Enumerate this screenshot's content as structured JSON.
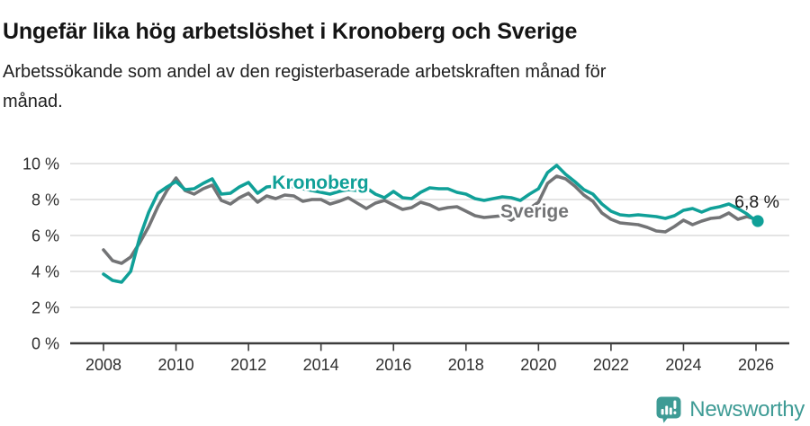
{
  "header": {
    "title": "Ungefär lika hög arbetslöshet i Kronoberg och Sverige",
    "subtitle_line1": "Arbetssökande som andel av den registerbaserade arbetskraften månad för",
    "subtitle_line2": "månad."
  },
  "chart_data": {
    "type": "line",
    "unit": "%",
    "grid": "horizontal",
    "legend": "inline-series-labels",
    "ylim": [
      0,
      10.5
    ],
    "xlim": [
      2007.1,
      2026.9
    ],
    "yticks": [
      "0 %",
      "2 %",
      "4 %",
      "6 %",
      "8 %",
      "10 %"
    ],
    "ytick_values": [
      0,
      2,
      4,
      6,
      8,
      10
    ],
    "xticks": [
      "2008",
      "2010",
      "2012",
      "2014",
      "2016",
      "2018",
      "2020",
      "2022",
      "2024",
      "2026"
    ],
    "xtick_values": [
      2008,
      2010,
      2012,
      2014,
      2016,
      2018,
      2020,
      2022,
      2024,
      2026
    ],
    "x_years": [
      2008.0,
      2008.25,
      2008.5,
      2008.75,
      2009.0,
      2009.25,
      2009.5,
      2009.75,
      2010.0,
      2010.25,
      2010.5,
      2010.75,
      2011.0,
      2011.25,
      2011.5,
      2011.75,
      2012.0,
      2012.25,
      2012.5,
      2012.75,
      2013.0,
      2013.25,
      2013.5,
      2013.75,
      2014.0,
      2014.25,
      2014.5,
      2014.75,
      2015.0,
      2015.25,
      2015.5,
      2015.75,
      2016.0,
      2016.25,
      2016.5,
      2016.75,
      2017.0,
      2017.25,
      2017.5,
      2017.75,
      2018.0,
      2018.25,
      2018.5,
      2018.75,
      2019.0,
      2019.25,
      2019.5,
      2019.75,
      2020.0,
      2020.25,
      2020.5,
      2020.75,
      2021.0,
      2021.25,
      2021.5,
      2021.75,
      2022.0,
      2022.25,
      2022.5,
      2022.75,
      2023.0,
      2023.25,
      2023.5,
      2023.75,
      2024.0,
      2024.25,
      2024.5,
      2024.75,
      2025.0,
      2025.25,
      2025.5,
      2025.75,
      2026.0
    ],
    "series": [
      {
        "name": "Kronoberg",
        "color": "#10A098",
        "label_pos": {
          "x": 2012.65,
          "y_value": 8.95
        },
        "values": [
          3.85,
          3.5,
          3.4,
          4.0,
          5.9,
          7.3,
          8.35,
          8.7,
          9.0,
          8.55,
          8.6,
          8.9,
          9.15,
          8.3,
          8.35,
          8.7,
          8.95,
          8.35,
          8.7,
          8.75,
          8.8,
          8.7,
          8.6,
          8.5,
          8.4,
          8.3,
          8.45,
          8.55,
          8.5,
          8.65,
          8.3,
          8.1,
          8.45,
          8.1,
          8.05,
          8.4,
          8.65,
          8.6,
          8.6,
          8.4,
          8.3,
          8.05,
          7.95,
          8.05,
          8.15,
          8.1,
          7.95,
          8.3,
          8.6,
          9.5,
          9.9,
          9.4,
          9.0,
          8.55,
          8.3,
          7.75,
          7.35,
          7.15,
          7.1,
          7.15,
          7.1,
          7.05,
          6.95,
          7.1,
          7.4,
          7.5,
          7.3,
          7.5,
          7.6,
          7.75,
          7.5,
          7.2,
          6.8
        ]
      },
      {
        "name": "Sverige",
        "color": "#737476",
        "label_pos": {
          "x": 2018.95,
          "y_value": 7.35
        },
        "values": [
          5.2,
          4.6,
          4.45,
          4.8,
          5.6,
          6.5,
          7.6,
          8.5,
          9.2,
          8.5,
          8.3,
          8.6,
          8.8,
          7.95,
          7.75,
          8.1,
          8.35,
          7.85,
          8.2,
          8.05,
          8.25,
          8.2,
          7.9,
          8.0,
          8.0,
          7.75,
          7.9,
          8.1,
          7.8,
          7.5,
          7.8,
          7.95,
          7.7,
          7.45,
          7.55,
          7.85,
          7.7,
          7.45,
          7.55,
          7.6,
          7.35,
          7.1,
          7.0,
          7.05,
          7.1,
          6.85,
          7.15,
          7.5,
          7.85,
          8.9,
          9.3,
          9.15,
          8.75,
          8.25,
          7.9,
          7.25,
          6.9,
          6.7,
          6.65,
          6.6,
          6.45,
          6.25,
          6.2,
          6.5,
          6.85,
          6.6,
          6.8,
          6.95,
          7.0,
          7.25,
          6.9,
          7.05,
          6.9
        ]
      }
    ],
    "end_annotation": {
      "series": "Kronoberg",
      "label": "6,8 %",
      "value": 6.8,
      "x": 2026.0
    }
  },
  "branding": {
    "logo_text": "Newsworthy",
    "logo_color": "#3E9B95",
    "logo_icon": "newsworthy-bubble-barchart-icon"
  },
  "style": {
    "grid_color": "#DCDCDC",
    "axis_color": "#3C3C3C",
    "tick_label_color": "#2E2E2E",
    "annotation_color": "#1A1A1A"
  }
}
